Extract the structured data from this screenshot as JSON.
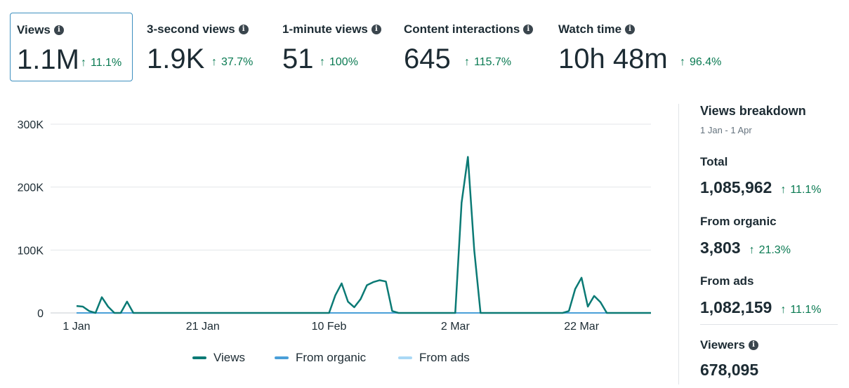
{
  "metrics": [
    {
      "title": "Views",
      "value": "1.1M",
      "change": "11.1%"
    },
    {
      "title": "3-second views",
      "value": "1.9K",
      "change": "37.7%"
    },
    {
      "title": "1-minute views",
      "value": "51",
      "change": "100%"
    },
    {
      "title": "Content interactions",
      "value": "645",
      "change": "115.7%"
    },
    {
      "title": "Watch time",
      "value": "10h 48m",
      "change": "96.4%"
    }
  ],
  "info_icon_glyph": "i",
  "change_arrow": "↑",
  "chart_data": {
    "type": "line",
    "title": "",
    "xlabel": "",
    "ylabel": "",
    "ylim": [
      0,
      300000
    ],
    "y_ticks": [
      "0",
      "100K",
      "200K",
      "300K"
    ],
    "x_tick_labels": [
      "1 Jan",
      "21 Jan",
      "10 Feb",
      "2 Mar",
      "22 Mar"
    ],
    "x_tick_days": [
      0,
      20,
      40,
      60,
      80
    ],
    "x_range_days": [
      0,
      91
    ],
    "series": [
      {
        "name": "Views",
        "color": "#0b7a75",
        "x": [
          0,
          1,
          2,
          3,
          4,
          5,
          6,
          7,
          8,
          9,
          10,
          11,
          12,
          14,
          20,
          30,
          40,
          41,
          42,
          43,
          44,
          45,
          46,
          47,
          48,
          49,
          50,
          51,
          52,
          53,
          55,
          58,
          59,
          60,
          61,
          62,
          63,
          64,
          65,
          68,
          75,
          76,
          77,
          78,
          79,
          80,
          81,
          82,
          83,
          84,
          85,
          88,
          91
        ],
        "values": [
          11000,
          10000,
          3000,
          0,
          25000,
          10000,
          0,
          0,
          18000,
          0,
          0,
          0,
          0,
          0,
          0,
          0,
          0,
          28000,
          47000,
          18000,
          9000,
          22000,
          44000,
          49000,
          52000,
          50000,
          3000,
          0,
          0,
          0,
          0,
          0,
          0,
          0,
          175000,
          248000,
          100000,
          0,
          0,
          0,
          0,
          0,
          0,
          3000,
          38000,
          56000,
          10000,
          27000,
          17000,
          0,
          0,
          0,
          0
        ]
      },
      {
        "name": "From organic",
        "color": "#4a9fd8",
        "x": [
          0,
          91
        ],
        "values": [
          0,
          0
        ]
      },
      {
        "name": "From ads",
        "color": "#a9d8f5",
        "x": [
          0,
          91
        ],
        "values": [
          0,
          0
        ]
      }
    ]
  },
  "breakdown": {
    "title": "Views breakdown",
    "date_range": "1 Jan - 1 Apr",
    "total": {
      "label": "Total",
      "value": "1,085,962",
      "change": "11.1%"
    },
    "organic": {
      "label": "From organic",
      "value": "3,803",
      "change": "21.3%"
    },
    "ads": {
      "label": "From ads",
      "value": "1,082,159",
      "change": "11.1%"
    },
    "viewers": {
      "label": "Viewers",
      "value": "678,095"
    }
  }
}
